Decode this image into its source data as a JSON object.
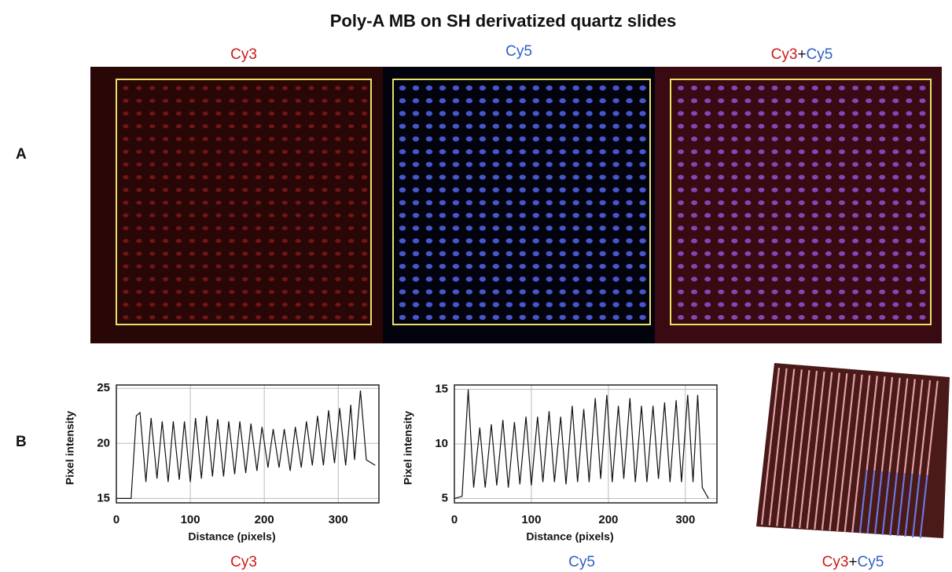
{
  "title": "Poly-A MB on SH derivatized quartz slides",
  "panel_labels": [
    "A",
    "B"
  ],
  "top_labels": [
    {
      "parts": [
        "Cy3"
      ]
    },
    {
      "parts": [
        "Cy5"
      ]
    },
    {
      "parts": [
        "Cy3",
        "+",
        "Cy5"
      ]
    }
  ],
  "surface_caption": {
    "parts": [
      "Cy3",
      "+",
      "Cy5"
    ]
  },
  "chart_data": [
    {
      "type": "line",
      "caption": "Cy3",
      "x_label": "Distance (pixels)",
      "y_label": "Pixel intensity",
      "x": [
        0,
        20,
        27,
        32,
        40,
        47,
        55,
        62,
        70,
        77,
        85,
        92,
        100,
        107,
        115,
        122,
        130,
        137,
        145,
        152,
        160,
        167,
        175,
        182,
        190,
        197,
        205,
        212,
        220,
        227,
        235,
        242,
        250,
        257,
        265,
        272,
        280,
        287,
        295,
        302,
        310,
        317,
        322,
        330,
        338,
        350
      ],
      "series": [
        {
          "color": "#111111",
          "values": [
            15,
            15,
            22.5,
            22.8,
            16.5,
            22.3,
            16.8,
            22,
            16.5,
            22,
            16.7,
            22,
            16.5,
            22.3,
            16.8,
            22.5,
            17,
            22.2,
            17,
            22,
            17.2,
            22,
            17.3,
            21.8,
            17.5,
            21.5,
            17.8,
            21.3,
            17.8,
            21.3,
            17.5,
            21.5,
            17.8,
            22,
            18,
            22.5,
            18,
            23,
            18.2,
            23.2,
            18,
            23.5,
            18.5,
            24.8,
            18.5,
            18
          ]
        }
      ],
      "xlim": [
        0,
        355
      ],
      "ylim": [
        14.6,
        25.3
      ],
      "xticks": [
        0,
        100,
        200,
        300
      ],
      "yticks": [
        15,
        20,
        25
      ],
      "grid": true
    },
    {
      "type": "line",
      "caption": "Cy5",
      "x_label": "Distance (pixels)",
      "y_label": "Pixel intensity",
      "x": [
        0,
        10,
        18,
        25,
        33,
        40,
        48,
        55,
        63,
        70,
        78,
        85,
        93,
        100,
        108,
        115,
        123,
        130,
        138,
        145,
        153,
        160,
        168,
        175,
        183,
        190,
        198,
        205,
        213,
        220,
        228,
        235,
        243,
        250,
        258,
        265,
        273,
        280,
        288,
        295,
        303,
        310,
        316,
        322,
        330
      ],
      "series": [
        {
          "color": "#111111",
          "values": [
            5,
            5.2,
            15,
            6,
            11.5,
            6,
            11.8,
            6.2,
            12.2,
            6,
            12,
            6.3,
            12.5,
            6.2,
            12.5,
            6.5,
            13,
            6.5,
            12.5,
            6.3,
            13.5,
            6.5,
            13.2,
            6.5,
            14.2,
            6.8,
            14.5,
            6.5,
            13.5,
            6.8,
            14.2,
            6.5,
            13.5,
            6.5,
            13.5,
            6.8,
            13.8,
            6.5,
            14,
            6.5,
            14.5,
            6.5,
            14.5,
            6,
            5
          ]
        }
      ],
      "xlim": [
        0,
        341
      ],
      "ylim": [
        4.6,
        15.4
      ],
      "xticks": [
        0,
        100,
        200,
        300
      ],
      "yticks": [
        5,
        10,
        15
      ],
      "grid": true
    }
  ]
}
